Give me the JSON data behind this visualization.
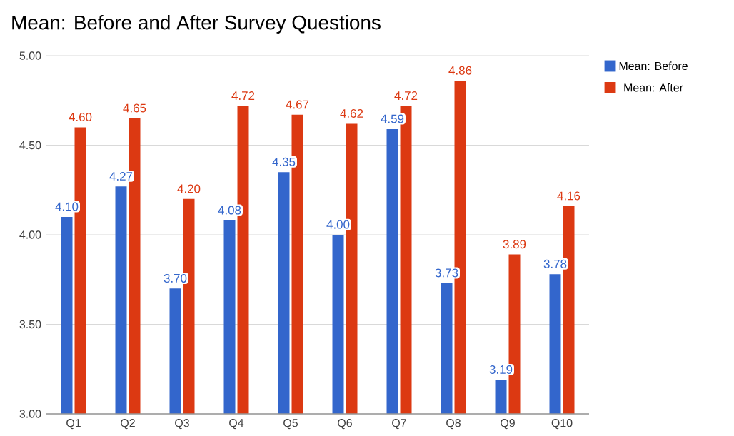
{
  "chart_data": {
    "type": "bar",
    "title": "Mean: Before and After Survey Questions",
    "categories": [
      "Q1",
      "Q2",
      "Q3",
      "Q4",
      "Q5",
      "Q6",
      "Q7",
      "Q8",
      "Q9",
      "Q10"
    ],
    "series": [
      {
        "name": "Mean: Before",
        "color": "#3366cc",
        "values": [
          4.1,
          4.27,
          3.7,
          4.08,
          4.35,
          4.0,
          4.59,
          3.73,
          3.19,
          3.78
        ],
        "value_labels": [
          "4.10",
          "4.27",
          "3.70",
          "4.08",
          "4.35",
          "4.00",
          "4.59",
          "3.73",
          "3.19",
          "3.78"
        ]
      },
      {
        "name": "Mean: After",
        "color": "#dc3912",
        "values": [
          4.6,
          4.65,
          4.2,
          4.72,
          4.67,
          4.62,
          4.72,
          4.86,
          3.89,
          4.16
        ],
        "value_labels": [
          "4.60",
          "4.65",
          "4.20",
          "4.72",
          "4.67",
          "4.62",
          "4.72",
          "4.86",
          "3.89",
          "4.16"
        ]
      }
    ],
    "ylim": [
      3,
      5
    ],
    "yticks": [
      {
        "value": 3,
        "label": "3.00"
      },
      {
        "value": 3.5,
        "label": "3.50"
      },
      {
        "value": 4,
        "label": "4.00"
      },
      {
        "value": 4.5,
        "label": "4.50"
      },
      {
        "value": 5,
        "label": "5.00"
      }
    ],
    "grid": "y",
    "legend": "top right"
  }
}
